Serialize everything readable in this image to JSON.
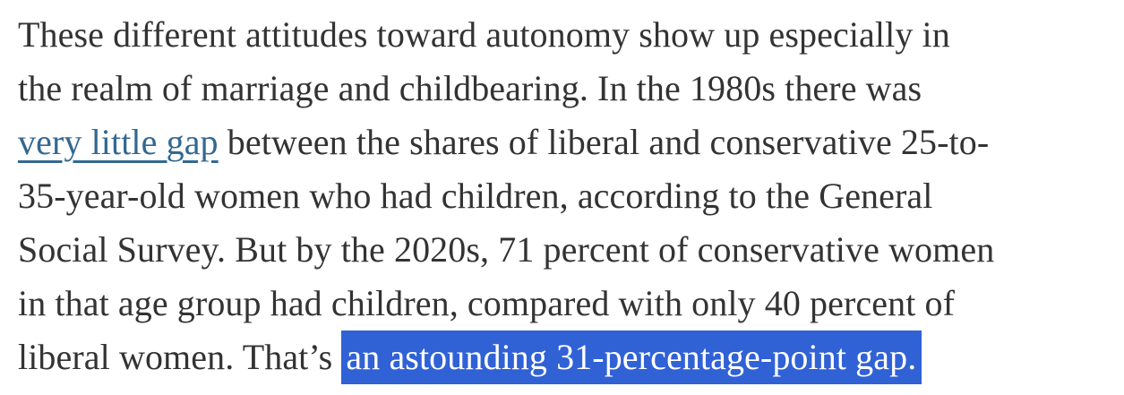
{
  "colors": {
    "body_text": "#333333",
    "link": "#326891",
    "selection_bg": "#3062d6",
    "selection_text": "#ffffff"
  },
  "paragraph": {
    "lines": [
      {
        "text": "These different attitudes toward autonomy show up especially in"
      },
      {
        "text": "the realm of marriage and childbearing. In the 1980s there was"
      },
      {
        "link_text": "very little gap",
        "text_after": " between the shares of liberal and conservative 25-to-"
      },
      {
        "text": "35-year-old women who had children, according to the General"
      },
      {
        "text": "Social Survey. But by the 2020s, 71 percent of conservative women"
      },
      {
        "text": "in that age group had children, compared with only 40 percent of"
      },
      {
        "text_before": "liberal women. That’s ",
        "selected_text": "an astounding 31-percentage-point gap."
      }
    ]
  }
}
